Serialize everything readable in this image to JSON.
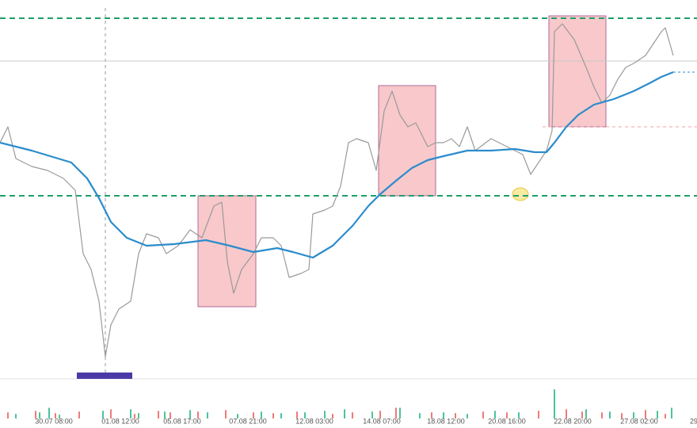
{
  "chart_data": {
    "type": "line",
    "xlim": [
      0,
      880
    ],
    "ylim": [
      0,
      478
    ],
    "xticks": [
      {
        "value": 68,
        "label": "30.07  08:00"
      },
      {
        "value": 152,
        "label": "01.08  12:00"
      },
      {
        "value": 230,
        "label": "05.08  17:00"
      },
      {
        "value": 313,
        "label": "07.08  21:00"
      },
      {
        "value": 397,
        "label": "12.08  03:00"
      },
      {
        "value": 482,
        "label": "14.08  07:00"
      },
      {
        "value": 563,
        "label": "18.08  12:00"
      },
      {
        "value": 640,
        "label": "20.08  16:00"
      },
      {
        "value": 723,
        "label": "22.08  20:00"
      },
      {
        "value": 807,
        "label": "27.08  02:00"
      },
      {
        "value": 876,
        "label": "29"
      }
    ],
    "series": [
      {
        "color": "#9a9a9a",
        "x": [
          0,
          10,
          20,
          40,
          60,
          80,
          95,
          105,
          115,
          125,
          133,
          140,
          150,
          165,
          175,
          185,
          200,
          210,
          225,
          240,
          255,
          270,
          280,
          287,
          295,
          305,
          320,
          330,
          345,
          355,
          365,
          380,
          390,
          395,
          410,
          420,
          430,
          440,
          450,
          465,
          475,
          485,
          495,
          505,
          515,
          525,
          540,
          550,
          560,
          570,
          580,
          590,
          600,
          620,
          640,
          660,
          670,
          680,
          690,
          697,
          700,
          710,
          725,
          740,
          750,
          760,
          770,
          780,
          790,
          800,
          815,
          825,
          835,
          840,
          850
        ],
        "values": [
          298,
          318,
          278,
          268,
          263,
          253,
          238,
          158,
          138,
          98,
          28,
          68,
          88,
          98,
          158,
          183,
          178,
          158,
          168,
          188,
          178,
          218,
          223,
          148,
          108,
          138,
          158,
          178,
          178,
          168,
          128,
          133,
          138,
          208,
          213,
          218,
          243,
          298,
          303,
          298,
          263,
          338,
          363,
          333,
          318,
          323,
          293,
          298,
          298,
          303,
          293,
          318,
          288,
          303,
          293,
          283,
          258,
          273,
          288,
          313,
          438,
          448,
          428,
          393,
          368,
          348,
          358,
          378,
          393,
          398,
          408,
          423,
          438,
          443,
          408
        ]
      },
      {
        "color": "#2a8ccc",
        "x": [
          0,
          40,
          90,
          110,
          125,
          140,
          160,
          185,
          220,
          260,
          290,
          320,
          350,
          370,
          395,
          420,
          445,
          465,
          480,
          500,
          520,
          540,
          560,
          590,
          620,
          650,
          675,
          690,
          700,
          715,
          730,
          750,
          775,
          800,
          820,
          835,
          850
        ],
        "values": [
          298,
          288,
          273,
          253,
          228,
          198,
          178,
          168,
          170,
          175,
          168,
          160,
          165,
          160,
          153,
          168,
          193,
          218,
          233,
          250,
          266,
          276,
          281,
          288,
          288,
          290,
          286,
          286,
          298,
          318,
          333,
          346,
          353,
          363,
          373,
          381,
          387
        ]
      }
    ],
    "levels": [
      {
        "value": 455,
        "color": "#1f9e6a",
        "style": "dashed"
      },
      {
        "value": 231,
        "color": "#1f9e6a",
        "style": "dashed"
      },
      {
        "value": 401,
        "color": "#c8c8c8",
        "style": "solid"
      },
      {
        "value": 318,
        "color": "#f2a0a8",
        "style": "dashed",
        "from": 685
      }
    ],
    "zones": [
      {
        "x": [
          250,
          323
        ],
        "y": [
          231,
          91
        ]
      },
      {
        "x": [
          478,
          550
        ],
        "y": [
          370,
          231
        ]
      },
      {
        "x": [
          693,
          765
        ],
        "y": [
          458,
          318
        ]
      }
    ],
    "zone_color": "#f4a3a6",
    "zone_border": "#b06a9a",
    "volume": {
      "ylim": [
        0,
        60
      ],
      "series": [
        {
          "color": "#4cc39a",
          "x": [
            20,
            50,
            62,
            75,
            130,
            165,
            175,
            208,
            240,
            262,
            300,
            330,
            355,
            385,
            410,
            435,
            470,
            505,
            530,
            560,
            590,
            625,
            655,
            700,
            740,
            770,
            800,
            830,
            848
          ],
          "values": [
            6,
            8,
            14,
            5,
            10,
            12,
            7,
            9,
            11,
            8,
            6,
            9,
            7,
            8,
            10,
            12,
            9,
            14,
            7,
            8,
            6,
            10,
            8,
            38,
            12,
            9,
            8,
            10,
            14
          ]
        },
        {
          "color": "#ef7a7a",
          "x": [
            10,
            45,
            70,
            100,
            140,
            170,
            200,
            215,
            250,
            285,
            320,
            345,
            375,
            420,
            445,
            480,
            500,
            545,
            575,
            610,
            640,
            680,
            715,
            735,
            760,
            785,
            815,
            840
          ],
          "values": [
            8,
            10,
            7,
            9,
            12,
            6,
            10,
            8,
            9,
            11,
            8,
            7,
            9,
            6,
            8,
            10,
            14,
            8,
            7,
            9,
            8,
            10,
            12,
            9,
            8,
            7,
            11,
            6
          ]
        }
      ]
    }
  }
}
